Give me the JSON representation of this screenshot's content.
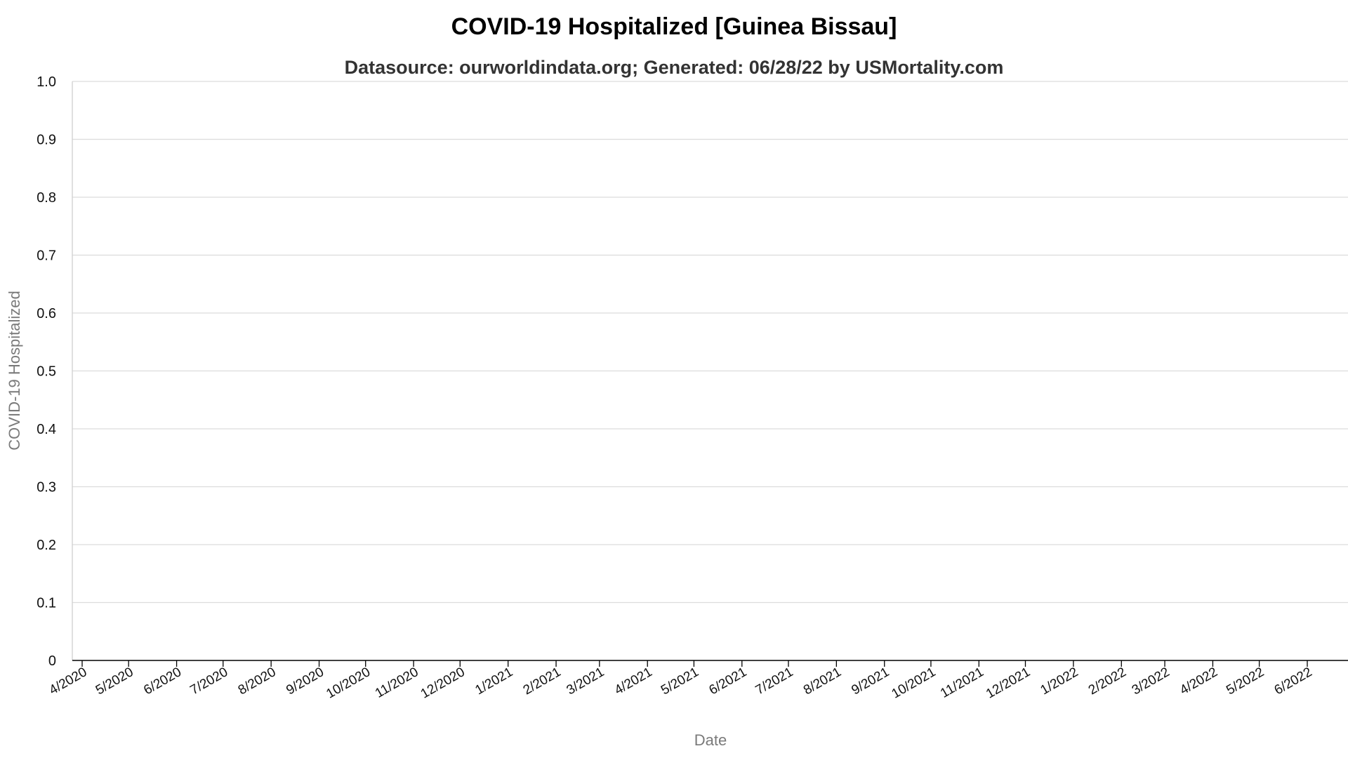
{
  "chart_data": {
    "type": "line",
    "title": "COVID-19 Hospitalized [Guinea Bissau]",
    "subtitle": "Datasource: ourworldindata.org; Generated: 06/28/22 by USMortality.com",
    "xlabel": "Date",
    "ylabel": "COVID-19 Hospitalized",
    "ylim": [
      0,
      1.0
    ],
    "y_ticks": [
      "0",
      "0.1",
      "0.2",
      "0.3",
      "0.4",
      "0.5",
      "0.6",
      "0.7",
      "0.8",
      "0.9",
      "1.0"
    ],
    "x_ticks": [
      "4/2020",
      "5/2020",
      "6/2020",
      "7/2020",
      "8/2020",
      "9/2020",
      "10/2020",
      "11/2020",
      "12/2020",
      "1/2021",
      "2/2021",
      "3/2021",
      "4/2021",
      "5/2021",
      "6/2021",
      "7/2021",
      "8/2021",
      "9/2021",
      "10/2021",
      "11/2021",
      "12/2021",
      "1/2022",
      "2/2022",
      "3/2022",
      "4/2022",
      "5/2022",
      "6/2022"
    ],
    "grid": true,
    "series": []
  }
}
